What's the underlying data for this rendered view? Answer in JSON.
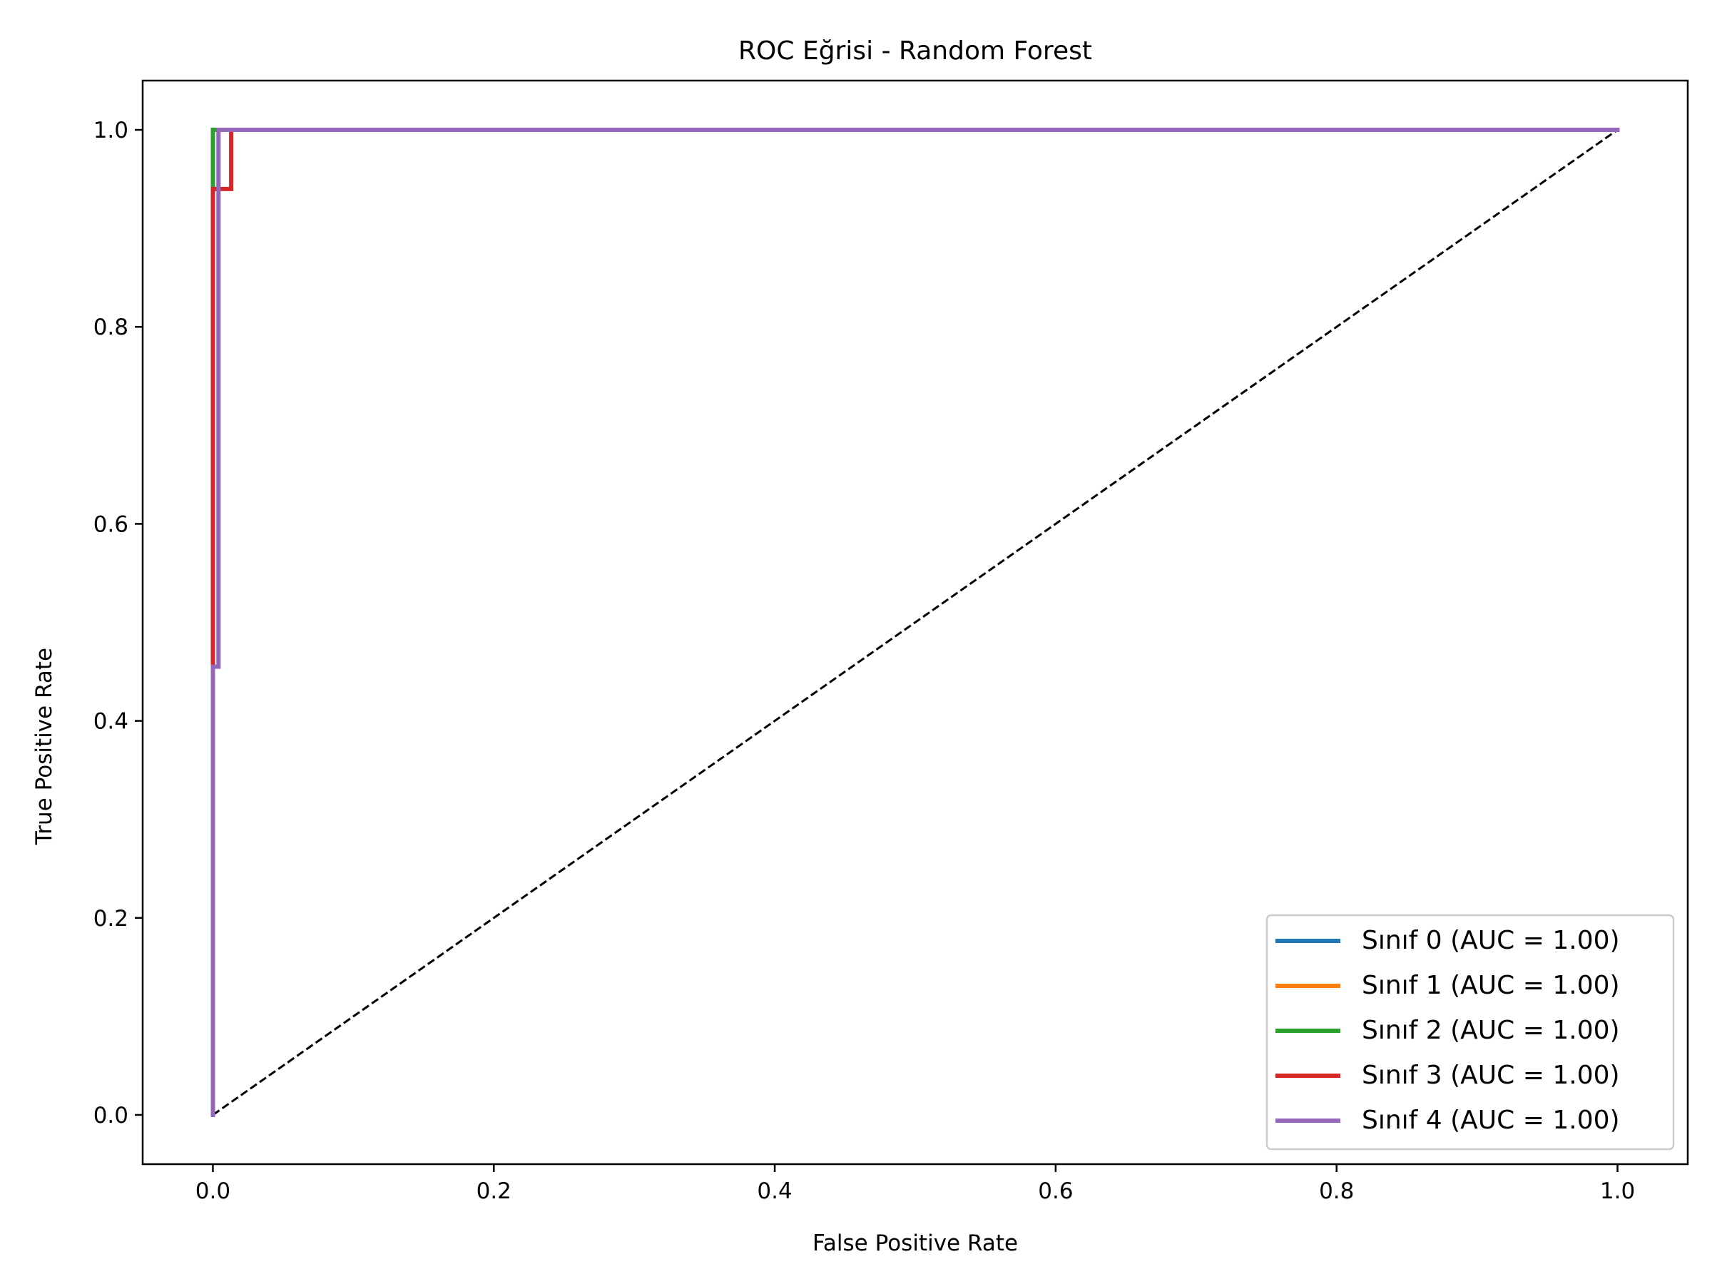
{
  "chart_data": {
    "type": "line",
    "title": "ROC Eğrisi - Random Forest",
    "xlabel": "False Positive Rate",
    "ylabel": "True Positive Rate",
    "xlim": [
      -0.05,
      1.05
    ],
    "ylim": [
      -0.05,
      1.05
    ],
    "xticks": [
      0.0,
      0.2,
      0.4,
      0.6,
      0.8,
      1.0
    ],
    "yticks": [
      0.0,
      0.2,
      0.4,
      0.6,
      0.8,
      1.0
    ],
    "xtick_labels": [
      "0.0",
      "0.2",
      "0.4",
      "0.6",
      "0.8",
      "1.0"
    ],
    "ytick_labels": [
      "0.0",
      "0.2",
      "0.4",
      "0.6",
      "0.8",
      "1.0"
    ],
    "grid": false,
    "legend_position": "lower right",
    "series": [
      {
        "name": "Sınıf 0 (AUC = 1.00)",
        "color": "#1f77b4",
        "x": [
          0,
          0,
          1
        ],
        "y": [
          0,
          1,
          1
        ]
      },
      {
        "name": "Sınıf 1 (AUC = 1.00)",
        "color": "#ff7f0e",
        "x": [
          0,
          0,
          1
        ],
        "y": [
          0,
          1,
          1
        ]
      },
      {
        "name": "Sınıf 2 (AUC = 1.00)",
        "color": "#2ca02c",
        "x": [
          0,
          0,
          1
        ],
        "y": [
          0,
          1,
          1
        ]
      },
      {
        "name": "Sınıf 3 (AUC = 1.00)",
        "color": "#d62728",
        "x": [
          0,
          0,
          0,
          0.013,
          0.013,
          1
        ],
        "y": [
          0,
          0.46,
          0.94,
          0.94,
          1,
          1
        ]
      },
      {
        "name": "Sınıf 4 (AUC = 1.00)",
        "color": "#9467bd",
        "x": [
          0,
          0,
          0.004,
          0.004,
          1
        ],
        "y": [
          0,
          0.455,
          0.455,
          1,
          1
        ]
      }
    ],
    "reference_line": {
      "x": [
        0,
        1
      ],
      "y": [
        0,
        1
      ],
      "color": "#000000",
      "style": "dashed"
    }
  }
}
